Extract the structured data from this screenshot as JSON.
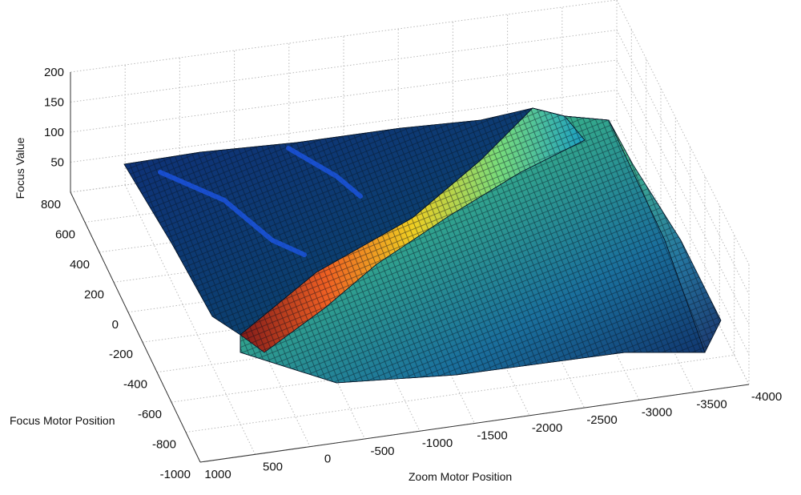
{
  "chart_data": {
    "type": "surface",
    "title": "",
    "xlabel": "Zoom Motor Position",
    "ylabel": "Focus Motor Position",
    "zlabel": "Focus Value",
    "x_ticks": [
      "1000",
      "500",
      "0",
      "-500",
      "-1000",
      "-1500",
      "-2000",
      "-2500",
      "-3000",
      "-3500",
      "-4000"
    ],
    "y_ticks": [
      "800",
      "600",
      "400",
      "200",
      "0",
      "-200",
      "-400",
      "-600",
      "-800",
      "-1000"
    ],
    "z_ticks": [
      "200",
      "150",
      "100",
      "50"
    ],
    "xlim": [
      -4000,
      1000
    ],
    "ylim": [
      -1000,
      800
    ],
    "zlim": [
      0,
      200
    ],
    "grid": true,
    "colormap": "jet",
    "ridge": [
      {
        "zoom": 800,
        "focus": -250,
        "value": 165
      },
      {
        "zoom": 0,
        "focus": -150,
        "value": 150
      },
      {
        "zoom": -800,
        "focus": 0,
        "value": 110
      },
      {
        "zoom": -1600,
        "focus": 300,
        "value": 140
      },
      {
        "zoom": -2400,
        "focus": 550,
        "value": 160
      },
      {
        "zoom": -3000,
        "focus": 720,
        "value": 175
      }
    ],
    "surface_corners": [
      {
        "zoom": 1000,
        "focus": 800,
        "value": 60
      },
      {
        "zoom": -3000,
        "focus": 800,
        "value": 85
      },
      {
        "zoom": -4000,
        "focus": -1000,
        "value": 30
      },
      {
        "zoom": 1000,
        "focus": -1000,
        "value": 30
      }
    ]
  }
}
